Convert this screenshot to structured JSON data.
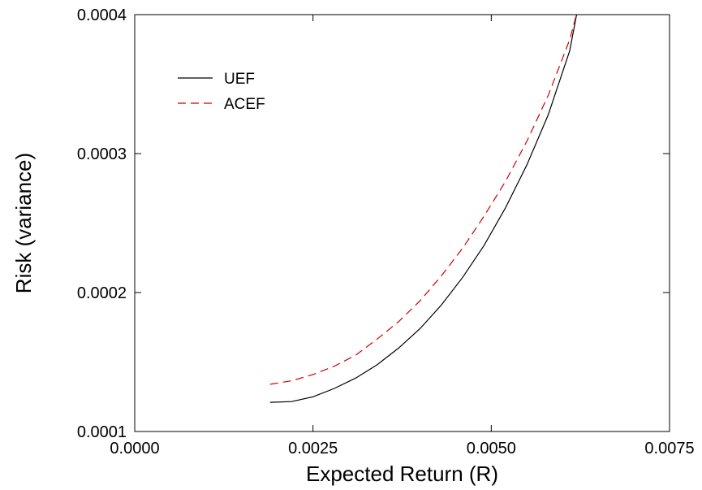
{
  "chart_data": {
    "type": "line",
    "title": "",
    "xlabel": "Expected Return (R)",
    "ylabel": "Risk (variance)",
    "xlim": [
      0.0,
      0.0075
    ],
    "ylim": [
      0.0001,
      0.0004
    ],
    "x_ticks": [
      0.0,
      0.0025,
      0.005,
      0.0075
    ],
    "x_tick_labels": [
      "0.0000",
      "0.0025",
      "0.0050",
      "0.0075"
    ],
    "y_ticks": [
      0.0001,
      0.0002,
      0.0003,
      0.0004
    ],
    "y_tick_labels": [
      "0.0001",
      "0.0002",
      "0.0003",
      "0.0004"
    ],
    "grid": false,
    "legend_position": "top-left",
    "series": [
      {
        "name": "UEF",
        "color": "#000000",
        "dash": "solid",
        "x": [
          0.0019,
          0.0022,
          0.0025,
          0.0028,
          0.0031,
          0.0034,
          0.0037,
          0.004,
          0.0043,
          0.0046,
          0.0049,
          0.0052,
          0.0055,
          0.0058,
          0.0061,
          0.0062
        ],
        "y": [
          0.000121,
          0.0001215,
          0.000125,
          0.000131,
          0.0001385,
          0.000148,
          0.00016,
          0.000174,
          0.000191,
          0.000211,
          0.000234,
          0.000261,
          0.000292,
          0.000328,
          0.000374,
          0.000401
        ]
      },
      {
        "name": "ACEF",
        "color": "#cc0000",
        "dash": "dashed",
        "x": [
          0.0019,
          0.0022,
          0.0025,
          0.0028,
          0.0031,
          0.0034,
          0.0037,
          0.004,
          0.0043,
          0.0046,
          0.0049,
          0.0052,
          0.0055,
          0.0058,
          0.0061,
          0.0062
        ],
        "y": [
          0.000134,
          0.0001365,
          0.000141,
          0.000147,
          0.000155,
          0.0001665,
          0.000179,
          0.000194,
          0.000212,
          0.000232,
          0.000255,
          0.00028,
          0.000309,
          0.000342,
          0.000382,
          0.000401
        ]
      }
    ]
  }
}
